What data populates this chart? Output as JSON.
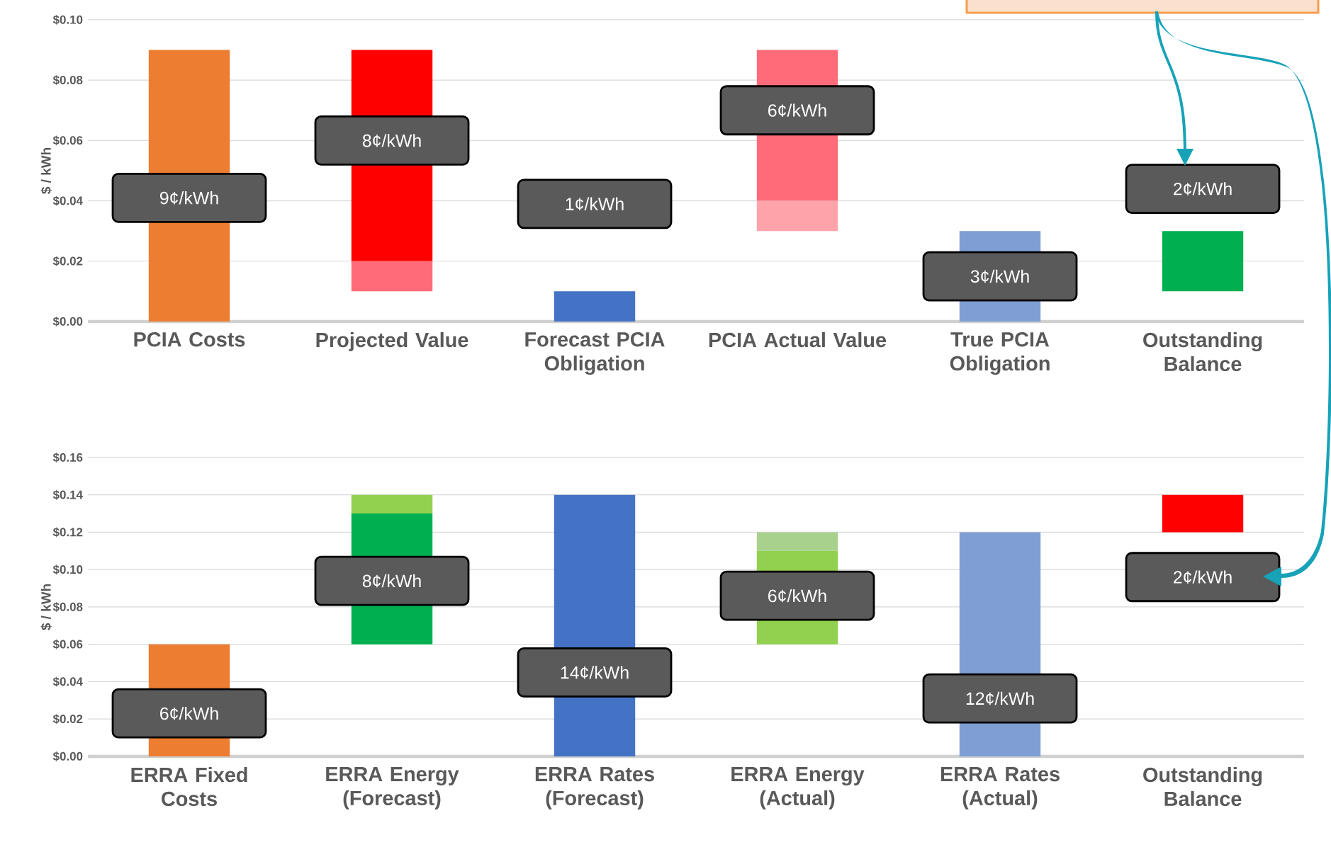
{
  "chart_data": [
    {
      "type": "bar",
      "ylabel": "$ / kWh",
      "categories": [
        "PCIA Costs",
        "Projected Value",
        "Forecast PCIA Obligation",
        "PCIA Actual Value",
        "True PCIA Obligation",
        "Outstanding Balance"
      ],
      "series": [
        {
          "base": [
            0,
            0.02,
            0,
            0.04,
            0,
            0.01
          ],
          "values": [
            0.09,
            0.07,
            0.01,
            0.05,
            0.03,
            0.02
          ],
          "colors": [
            "#ed7d31",
            "#ff0000",
            "#4472c4",
            "#ff6b78",
            "#7f9ed3",
            "#00b050"
          ]
        },
        {
          "base": [
            null,
            0.01,
            null,
            0.03,
            null,
            null
          ],
          "values": [
            null,
            0.01,
            null,
            0.01,
            null,
            null
          ],
          "colors": [
            null,
            "#ff6b78",
            null,
            "#ffa3ab",
            null,
            null
          ]
        }
      ],
      "ylim": [
        0,
        0.1
      ],
      "yticks": [
        {
          "value": 0,
          "label": "$0.00"
        },
        {
          "value": 0.02,
          "label": "$0.02"
        },
        {
          "value": 0.04,
          "label": "$0.04"
        },
        {
          "value": 0.06,
          "label": "$0.06"
        },
        {
          "value": 0.08,
          "label": "$0.08"
        },
        {
          "value": 0.1,
          "label": "$0.10"
        }
      ],
      "grid": "y",
      "annotations": [
        "9¢/kWh",
        "8¢/kWh",
        "1¢/kWh",
        "6¢/kWh",
        "3¢/kWh",
        "2¢/kWh"
      ]
    },
    {
      "type": "bar",
      "ylabel": "$ / kWh",
      "categories": [
        "ERRA Fixed Costs",
        "ERRA Energy (Forecast)",
        "ERRA Rates (Forecast)",
        "ERRA Energy (Actual)",
        "ERRA Rates (Actual)",
        "Outstanding Balance"
      ],
      "series": [
        {
          "base": [
            0,
            0.06,
            0,
            0.06,
            0,
            0.12
          ],
          "values": [
            0.06,
            0.07,
            0.14,
            0.05,
            0.12,
            0.02
          ],
          "colors": [
            "#ed7d31",
            "#00b050",
            "#4472c4",
            "#92d050",
            "#7f9ed3",
            "#ff0000"
          ]
        },
        {
          "base": [
            null,
            0.13,
            null,
            0.11,
            null,
            null
          ],
          "values": [
            null,
            0.01,
            null,
            0.01,
            null,
            null
          ],
          "colors": [
            null,
            "#92d050",
            null,
            "#a9d18e",
            null,
            null
          ]
        }
      ],
      "ylim": [
        0,
        0.16
      ],
      "yticks": [
        {
          "value": 0,
          "label": "$0.00"
        },
        {
          "value": 0.02,
          "label": "$0.02"
        },
        {
          "value": 0.04,
          "label": "$0.04"
        },
        {
          "value": 0.06,
          "label": "$0.06"
        },
        {
          "value": 0.08,
          "label": "$0.08"
        },
        {
          "value": 0.1,
          "label": "$0.10"
        },
        {
          "value": 0.12,
          "label": "$0.12"
        },
        {
          "value": 0.14,
          "label": "$0.14"
        },
        {
          "value": 0.16,
          "label": "$0.16"
        }
      ],
      "grid": "y",
      "annotations": [
        "6¢/kWh",
        "8¢/kWh",
        "14¢/kWh",
        "6¢/kWh",
        "12¢/kWh",
        "2¢/kWh"
      ]
    }
  ]
}
